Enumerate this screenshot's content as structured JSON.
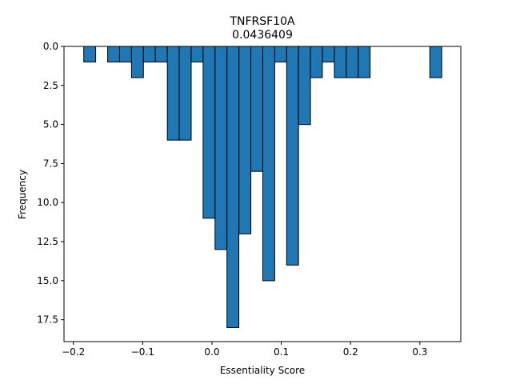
{
  "chart_data": {
    "type": "bar",
    "title": "TNFRSF10A",
    "subtitle": "0.0436409",
    "xlabel": "Essentiality Score",
    "ylabel": "Frequency",
    "xlim": [
      -0.2135,
      0.359
    ],
    "ylim": [
      0,
      18.9
    ],
    "y_inverted": true,
    "grid": false,
    "bar_color": "#1f77b4",
    "edge_color": "#000000",
    "bin_width": 0.0172,
    "x_ticks": [
      {
        "value": -0.2,
        "label": "−0.2"
      },
      {
        "value": -0.1,
        "label": "−0.1"
      },
      {
        "value": 0.0,
        "label": "0.0"
      },
      {
        "value": 0.1,
        "label": "0.1"
      },
      {
        "value": 0.2,
        "label": "0.2"
      },
      {
        "value": 0.3,
        "label": "0.3"
      }
    ],
    "y_ticks": [
      {
        "value": 0.0,
        "label": "0.0"
      },
      {
        "value": 2.5,
        "label": "2.5"
      },
      {
        "value": 5.0,
        "label": "5.0"
      },
      {
        "value": 7.5,
        "label": "7.5"
      },
      {
        "value": 10.0,
        "label": "10.0"
      },
      {
        "value": 12.5,
        "label": "12.5"
      },
      {
        "value": 15.0,
        "label": "15.0"
      },
      {
        "value": 17.5,
        "label": "17.5"
      }
    ],
    "bins": [
      {
        "x": -0.185,
        "count": 1
      },
      {
        "x": -0.1505,
        "count": 1
      },
      {
        "x": -0.1333,
        "count": 1
      },
      {
        "x": -0.1161,
        "count": 2
      },
      {
        "x": -0.0989,
        "count": 1
      },
      {
        "x": -0.0817,
        "count": 1
      },
      {
        "x": -0.0644,
        "count": 6
      },
      {
        "x": -0.0472,
        "count": 6
      },
      {
        "x": -0.03,
        "count": 1
      },
      {
        "x": -0.0128,
        "count": 11
      },
      {
        "x": 0.0044,
        "count": 13
      },
      {
        "x": 0.0216,
        "count": 18
      },
      {
        "x": 0.0389,
        "count": 12
      },
      {
        "x": 0.0561,
        "count": 8
      },
      {
        "x": 0.0733,
        "count": 15
      },
      {
        "x": 0.0905,
        "count": 1
      },
      {
        "x": 0.1077,
        "count": 14
      },
      {
        "x": 0.1249,
        "count": 5
      },
      {
        "x": 0.1421,
        "count": 2
      },
      {
        "x": 0.1594,
        "count": 1
      },
      {
        "x": 0.1766,
        "count": 2
      },
      {
        "x": 0.1938,
        "count": 2
      },
      {
        "x": 0.211,
        "count": 2
      },
      {
        "x": 0.3143,
        "count": 2
      }
    ]
  }
}
